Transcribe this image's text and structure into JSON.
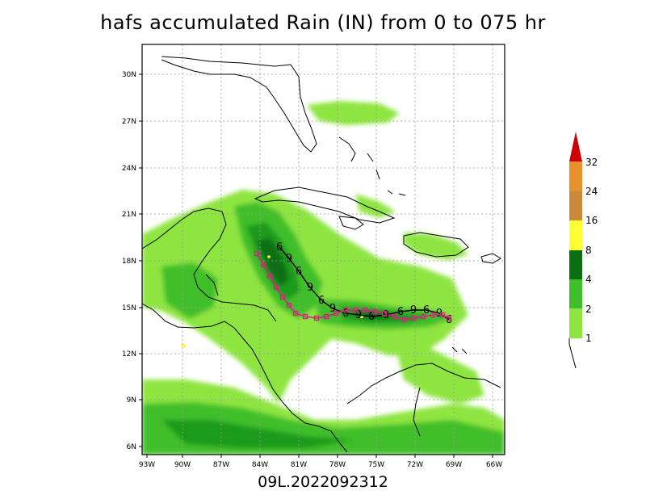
{
  "title": "hafs accumulated Rain (IN) from 0 to 075 hr",
  "footer": "09L.2022092312",
  "map": {
    "lon_ticks": [
      "93W",
      "90W",
      "87W",
      "84W",
      "81W",
      "78W",
      "75W",
      "72W",
      "69W",
      "66W"
    ],
    "lat_ticks": [
      "6N",
      "9N",
      "12N",
      "15N",
      "18N",
      "21N",
      "24N",
      "27N",
      "30N"
    ]
  },
  "colorbar": {
    "levels": [
      "1",
      "2",
      "4",
      "8",
      "16",
      "24",
      "32"
    ],
    "colors": [
      "#8ee53f",
      "#3fbf2a",
      "#1e9a1e",
      "#0b6e12",
      "#ffff33",
      "#c88a3a",
      "#e8902a",
      "#cc0000"
    ]
  },
  "track": {
    "label": "6",
    "label_alt": "9"
  }
}
